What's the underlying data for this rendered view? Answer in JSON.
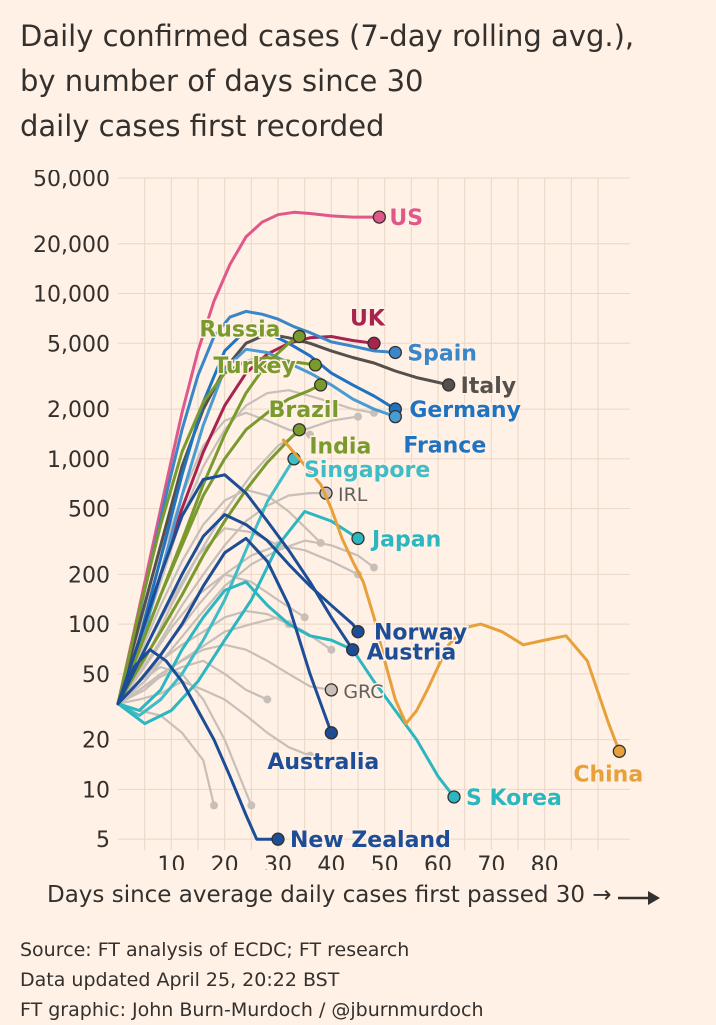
{
  "title_lines": [
    "Daily confirmed cases (7-day rolling avg.),",
    "by number of days since 30",
    "daily cases first recorded"
  ],
  "footer_lines": [
    "Source: FT analysis of ECDC; FT research",
    "Data updated April 25, 20:22 BST",
    "FT graphic: John Burn-Murdoch / @jburnmurdoch"
  ],
  "colors": {
    "background": "#fff1e5",
    "grid": "#e9d6c6",
    "grey_lines": "#c8bfb8",
    "US": "#e0588a",
    "UK": "#a8234e",
    "Spain": "#3a86c8",
    "Italy": "#55504b",
    "Germany": "#1f73c0",
    "France": "#4a9bd4",
    "Russia": "#7a9a2e",
    "Turkey": "#7a9a2e",
    "Brazil": "#7a9a2e",
    "India": "#7a9a2e",
    "Singapore": "#3fbcc6",
    "Japan": "#2cb6c0",
    "SKorea": "#2cb6c0",
    "China": "#e8a03a",
    "Norway": "#1c4d96",
    "Austria": "#1c4d96",
    "Australia": "#1c4d96",
    "NewZealand": "#1c4d96"
  },
  "chart_data": {
    "type": "line",
    "title": "Daily confirmed cases (7-day rolling avg.), by number of days since 30 daily cases first recorded",
    "xlabel": "Days since average daily cases first passed 30 →",
    "ylabel": "",
    "y_scale": "log",
    "xlim": [
      0,
      96
    ],
    "ylim": [
      4.3,
      50000
    ],
    "x_ticks": [
      10,
      20,
      30,
      40,
      50,
      60,
      70,
      80
    ],
    "x_tick_labels": [
      "10",
      "20",
      "30",
      "40",
      "50",
      "60",
      "70",
      "80"
    ],
    "y_ticks": [
      5,
      10,
      20,
      50,
      100,
      200,
      500,
      1000,
      2000,
      5000,
      10000,
      20000,
      50000
    ],
    "y_tick_labels": [
      "5",
      "10",
      "20",
      "50",
      "100",
      "200",
      "500",
      "1,000",
      "2,000",
      "5,000",
      "10,000",
      "20,000",
      "50,000"
    ],
    "grid": true,
    "legend": "none",
    "series": [
      {
        "name": "US",
        "color_key": "US",
        "label_color_key": "US",
        "label_dx": 10,
        "label_dy": 0,
        "label_size": "big",
        "x": [
          0,
          3,
          6,
          9,
          12,
          15,
          18,
          21,
          24,
          27,
          30,
          33,
          36,
          40,
          44,
          49
        ],
        "y": [
          33,
          90,
          250,
          700,
          1900,
          4500,
          9000,
          15000,
          22000,
          27000,
          30000,
          31000,
          30500,
          29500,
          29000,
          29000
        ]
      },
      {
        "name": "UK",
        "color_key": "UK",
        "label_color_key": "UK",
        "label_dx": -24,
        "label_dy": -26,
        "label_size": "big",
        "x": [
          0,
          4,
          8,
          12,
          16,
          20,
          24,
          28,
          32,
          36,
          40,
          44,
          48
        ],
        "y": [
          33,
          80,
          200,
          500,
          1100,
          2100,
          3300,
          4300,
          5000,
          5400,
          5500,
          5200,
          5000
        ]
      },
      {
        "name": "Spain",
        "color_key": "Spain",
        "label_color_key": "Spain",
        "label_dx": 12,
        "label_dy": 0,
        "label_size": "big",
        "x": [
          0,
          3,
          6,
          9,
          12,
          15,
          18,
          21,
          24,
          27,
          30,
          33,
          36,
          40,
          44,
          48,
          52
        ],
        "y": [
          33,
          85,
          220,
          600,
          1500,
          3200,
          5500,
          7200,
          7800,
          7500,
          7000,
          6300,
          5800,
          5100,
          4800,
          4500,
          4400
        ]
      },
      {
        "name": "Italy",
        "color_key": "Italy",
        "label_color_key": "Italy",
        "label_dx": 12,
        "label_dy": 0,
        "label_size": "big",
        "x": [
          0,
          4,
          8,
          12,
          16,
          20,
          24,
          28,
          32,
          36,
          40,
          44,
          48,
          52,
          56,
          60,
          62
        ],
        "y": [
          33,
          100,
          300,
          900,
          2000,
          3500,
          5000,
          5700,
          5400,
          5000,
          4500,
          4100,
          3800,
          3400,
          3100,
          2900,
          2800
        ]
      },
      {
        "name": "Germany",
        "color_key": "Germany",
        "label_color_key": "Germany",
        "label_dx": 14,
        "label_dy": 0,
        "label_size": "big",
        "x": [
          0,
          4,
          8,
          12,
          16,
          20,
          24,
          28,
          32,
          36,
          40,
          44,
          48,
          52
        ],
        "y": [
          33,
          80,
          250,
          800,
          2200,
          4500,
          6000,
          5800,
          5000,
          4200,
          3300,
          2800,
          2400,
          2000
        ]
      },
      {
        "name": "France",
        "color_key": "France",
        "label_color_key": "Germany",
        "label_dx": 8,
        "label_dy": 28,
        "label_size": "big",
        "x": [
          0,
          4,
          8,
          12,
          16,
          20,
          24,
          28,
          32,
          36,
          40,
          44,
          48,
          52
        ],
        "y": [
          33,
          70,
          200,
          600,
          1600,
          3500,
          4600,
          4400,
          3800,
          3300,
          2800,
          2300,
          2000,
          1800
        ]
      },
      {
        "name": "Russia",
        "color_key": "Russia",
        "label_color_key": "Russia",
        "label_dx": -100,
        "label_dy": -8,
        "label_size": "big",
        "x": [
          0,
          4,
          8,
          12,
          16,
          20,
          24,
          28,
          32,
          34
        ],
        "y": [
          33,
          70,
          150,
          320,
          700,
          1400,
          2500,
          3800,
          5000,
          5500
        ]
      },
      {
        "name": "Turkey",
        "color_key": "Turkey",
        "label_color_key": "Turkey",
        "label_dx": -102,
        "label_dy": 0,
        "label_size": "big",
        "x": [
          0,
          4,
          8,
          12,
          16,
          20,
          24,
          28,
          32,
          37
        ],
        "y": [
          33,
          120,
          400,
          1100,
          2200,
          3300,
          3900,
          4100,
          3900,
          3700
        ]
      },
      {
        "name": "Brazil",
        "color_key": "Brazil",
        "label_color_key": "Brazil",
        "label_dx": -52,
        "label_dy": 24,
        "label_size": "big",
        "x": [
          0,
          4,
          8,
          12,
          16,
          20,
          24,
          28,
          32,
          36,
          38
        ],
        "y": [
          33,
          70,
          150,
          300,
          600,
          1000,
          1500,
          1900,
          2300,
          2600,
          2800
        ]
      },
      {
        "name": "India",
        "color_key": "India",
        "label_color_key": "India",
        "label_dx": 10,
        "label_dy": 16,
        "label_size": "big",
        "x": [
          0,
          4,
          8,
          12,
          16,
          20,
          24,
          28,
          32,
          34
        ],
        "y": [
          33,
          55,
          90,
          150,
          260,
          420,
          650,
          950,
          1300,
          1500
        ]
      },
      {
        "name": "Singapore",
        "color_key": "Singapore",
        "label_color_key": "Singapore",
        "label_dx": 10,
        "label_dy": 10,
        "label_size": "big",
        "x": [
          0,
          4,
          8,
          12,
          16,
          20,
          24,
          28,
          33
        ],
        "y": [
          33,
          28,
          35,
          50,
          80,
          140,
          280,
          550,
          1000
        ]
      },
      {
        "name": "Japan",
        "color_key": "Japan",
        "label_color_key": "Japan",
        "label_dx": 14,
        "label_dy": 0,
        "label_size": "big",
        "x": [
          0,
          5,
          10,
          15,
          20,
          25,
          30,
          35,
          40,
          45
        ],
        "y": [
          33,
          25,
          30,
          45,
          80,
          140,
          300,
          480,
          420,
          330
        ]
      },
      {
        "name": "S Korea",
        "color_key": "SKorea",
        "label_color_key": "SKorea",
        "label_dx": 12,
        "label_dy": 0,
        "label_size": "big",
        "x": [
          0,
          4,
          8,
          12,
          16,
          20,
          24,
          28,
          32,
          36,
          40,
          44,
          48,
          52,
          56,
          60,
          63
        ],
        "y": [
          33,
          30,
          40,
          70,
          110,
          160,
          180,
          130,
          100,
          85,
          80,
          70,
          45,
          30,
          20,
          12,
          9
        ]
      },
      {
        "name": "China",
        "color_key": "China",
        "label_color_key": "China",
        "label_dx": -46,
        "label_dy": 22,
        "label_size": "big",
        "x": [
          31,
          34,
          38,
          40,
          42,
          44,
          46,
          48,
          50,
          52,
          54,
          56,
          58,
          60,
          62,
          65,
          68,
          72,
          76,
          80,
          84,
          88,
          92,
          94
        ],
        "y": [
          1300,
          1000,
          700,
          500,
          330,
          240,
          180,
          110,
          60,
          35,
          25,
          30,
          40,
          55,
          75,
          95,
          100,
          90,
          75,
          80,
          85,
          60,
          25,
          17
        ]
      },
      {
        "name": "Norway",
        "color_key": "Norway",
        "label_color_key": "Norway",
        "label_dx": 16,
        "label_dy": 0,
        "label_size": "big",
        "x": [
          0,
          4,
          8,
          12,
          16,
          20,
          24,
          28,
          32,
          36,
          40,
          44,
          45
        ],
        "y": [
          33,
          60,
          110,
          200,
          340,
          460,
          400,
          320,
          230,
          170,
          130,
          100,
          90
        ]
      },
      {
        "name": "Austria",
        "color_key": "Austria",
        "label_color_key": "Austria",
        "label_dx": 14,
        "label_dy": 2,
        "label_size": "big",
        "x": [
          0,
          4,
          8,
          12,
          16,
          20,
          24,
          28,
          32,
          36,
          40,
          44
        ],
        "y": [
          33,
          80,
          200,
          450,
          750,
          800,
          620,
          420,
          280,
          180,
          110,
          70
        ]
      },
      {
        "name": "Australia",
        "color_key": "Australia",
        "label_color_key": "Australia",
        "label_dx": -64,
        "label_dy": 28,
        "label_size": "big",
        "x": [
          0,
          4,
          8,
          12,
          16,
          20,
          24,
          28,
          32,
          36,
          40
        ],
        "y": [
          33,
          45,
          65,
          100,
          170,
          270,
          330,
          240,
          130,
          50,
          22
        ]
      },
      {
        "name": "New Zealand",
        "color_key": "NewZealand",
        "label_color_key": "NewZealand",
        "label_dx": 12,
        "label_dy": 0,
        "label_size": "big",
        "x": [
          0,
          3,
          6,
          9,
          12,
          15,
          18,
          21,
          24,
          26,
          30
        ],
        "y": [
          33,
          55,
          70,
          60,
          45,
          30,
          20,
          12,
          7,
          5,
          5
        ]
      },
      {
        "name": "IRL",
        "color_key": "grey_lines",
        "label_color_key": "grey_lines",
        "label_dx": 12,
        "label_dy": 0,
        "label_size": "small",
        "x": [
          0,
          4,
          8,
          12,
          16,
          20,
          24,
          28,
          32,
          36,
          39
        ],
        "y": [
          33,
          50,
          80,
          130,
          200,
          300,
          420,
          520,
          600,
          620,
          620
        ]
      },
      {
        "name": "GRC",
        "color_key": "grey_lines",
        "label_color_key": "grey_lines",
        "label_dx": 12,
        "label_dy": 0,
        "label_size": "small",
        "x": [
          0,
          4,
          8,
          12,
          16,
          20,
          24,
          28,
          32,
          36,
          40
        ],
        "y": [
          33,
          40,
          50,
          60,
          70,
          75,
          70,
          60,
          50,
          42,
          40
        ]
      }
    ],
    "grey_series": [
      {
        "x": [
          0,
          5,
          10,
          15,
          20,
          25,
          30
        ],
        "y": [
          33,
          70,
          140,
          260,
          380,
          360,
          300
        ]
      },
      {
        "x": [
          0,
          5,
          10,
          15,
          20,
          25,
          30,
          35
        ],
        "y": [
          33,
          55,
          95,
          150,
          200,
          180,
          140,
          110
        ]
      },
      {
        "x": [
          0,
          4,
          8,
          12,
          16,
          20,
          24,
          28,
          32,
          36
        ],
        "y": [
          33,
          90,
          250,
          600,
          1200,
          1700,
          1900,
          1700,
          1500,
          1400
        ]
      },
      {
        "x": [
          0,
          5,
          10,
          15,
          20,
          25,
          30,
          35,
          40,
          45
        ],
        "y": [
          33,
          60,
          130,
          260,
          480,
          800,
          1200,
          1500,
          1700,
          1800
        ]
      },
      {
        "x": [
          0,
          4,
          8,
          12,
          16,
          20,
          24,
          28,
          32
        ],
        "y": [
          33,
          45,
          60,
          75,
          90,
          110,
          120,
          115,
          100
        ]
      },
      {
        "x": [
          0,
          5,
          10,
          15,
          20,
          25,
          30,
          35,
          40,
          45
        ],
        "y": [
          33,
          50,
          80,
          130,
          200,
          260,
          300,
          280,
          240,
          200
        ]
      },
      {
        "x": [
          0,
          4,
          8,
          12,
          16,
          20,
          24,
          28
        ],
        "y": [
          33,
          40,
          48,
          55,
          60,
          50,
          40,
          35
        ]
      },
      {
        "x": [
          0,
          4,
          8,
          12,
          16,
          20,
          24,
          28,
          32,
          36
        ],
        "y": [
          33,
          35,
          38,
          45,
          40,
          35,
          28,
          22,
          18,
          16
        ]
      },
      {
        "x": [
          0,
          4,
          8,
          12,
          16,
          18
        ],
        "y": [
          33,
          30,
          28,
          22,
          15,
          8
        ]
      },
      {
        "x": [
          0,
          4,
          8,
          12,
          16,
          20,
          25
        ],
        "y": [
          33,
          45,
          55,
          50,
          35,
          20,
          8
        ]
      },
      {
        "x": [
          0,
          5,
          10,
          15,
          20,
          25,
          30,
          35,
          40,
          45,
          48
        ],
        "y": [
          33,
          45,
          70,
          110,
          170,
          230,
          280,
          320,
          300,
          260,
          220
        ]
      },
      {
        "x": [
          0,
          4,
          8,
          12,
          16,
          20,
          24,
          28,
          32,
          36,
          38
        ],
        "y": [
          33,
          65,
          130,
          240,
          400,
          560,
          650,
          600,
          480,
          360,
          310
        ]
      },
      {
        "x": [
          0,
          5,
          10,
          15,
          20,
          25,
          30,
          35,
          40
        ],
        "y": [
          33,
          40,
          55,
          70,
          90,
          100,
          110,
          90,
          70
        ]
      },
      {
        "x": [
          0,
          4,
          8,
          12,
          16,
          20,
          24,
          28,
          32,
          36,
          40,
          44,
          48
        ],
        "y": [
          33,
          75,
          180,
          450,
          900,
          1500,
          2100,
          2500,
          2600,
          2400,
          2200,
          2000,
          1900
        ]
      }
    ]
  }
}
